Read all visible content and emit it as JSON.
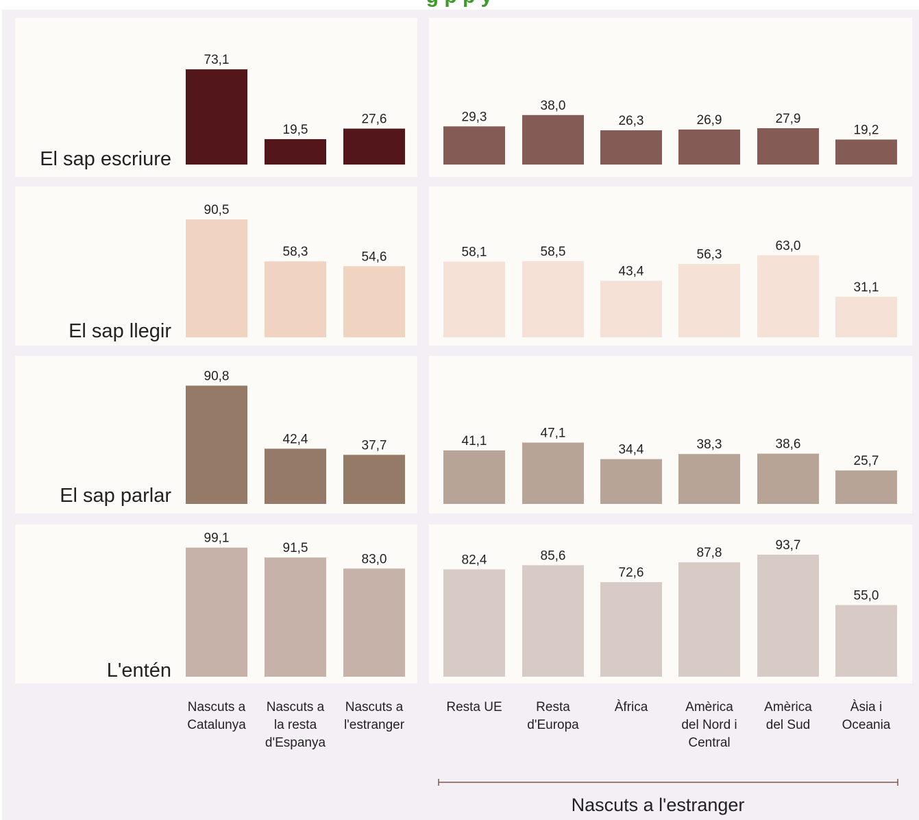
{
  "chart_data": {
    "type": "bar",
    "title": "",
    "title_fragment": "g            p         p                                               y",
    "group_label": "Nascuts a l'estranger",
    "left_categories": [
      "Nascuts a Catalunya",
      "Nascuts a la resta d'Espanya",
      "Nascuts a l'estranger"
    ],
    "left_category_lines": [
      [
        "Nascuts a",
        "Catalunya"
      ],
      [
        "Nascuts a",
        "la resta",
        "d'Espanya"
      ],
      [
        "Nascuts a",
        "l'estranger"
      ]
    ],
    "right_categories": [
      "Resta UE",
      "Resta d'Europa",
      "Àfrica",
      "Amèrica del Nord i Central",
      "Amèrica del Sud",
      "Àsia i Oceania"
    ],
    "right_category_lines": [
      [
        "Resta UE"
      ],
      [
        "Resta",
        "d'Europa"
      ],
      [
        "Àfrica"
      ],
      [
        "Amèrica",
        "del Nord i",
        "Central"
      ],
      [
        "Amèrica",
        "del Sud"
      ],
      [
        "Àsia i",
        "Oceania"
      ]
    ],
    "rows": [
      {
        "label": "El sap escriure",
        "left_values": [
          73.1,
          19.5,
          27.6
        ],
        "left_labels": [
          "73,1",
          "19,5",
          "27,6"
        ],
        "right_values": [
          29.3,
          38.0,
          26.3,
          26.9,
          27.9,
          19.2
        ],
        "right_labels": [
          "29,3",
          "38,0",
          "26,3",
          "26,9",
          "27,9",
          "19,2"
        ],
        "left_color": "#53161a",
        "right_color": "#855b56"
      },
      {
        "label": "El sap llegir",
        "left_values": [
          90.5,
          58.3,
          54.6
        ],
        "left_labels": [
          "90,5",
          "58,3",
          "54,6"
        ],
        "right_values": [
          58.1,
          58.5,
          43.4,
          56.3,
          63.0,
          31.1
        ],
        "right_labels": [
          "58,1",
          "58,5",
          "43,4",
          "56,3",
          "63,0",
          "31,1"
        ],
        "left_color": "#f0d3c1",
        "right_color": "#f5e1d5"
      },
      {
        "label": "El sap parlar",
        "left_values": [
          90.8,
          42.4,
          37.7
        ],
        "left_labels": [
          "90,8",
          "42,4",
          "37,7"
        ],
        "right_values": [
          41.1,
          47.1,
          34.4,
          38.3,
          38.6,
          25.7
        ],
        "right_labels": [
          "41,1",
          "47,1",
          "34,4",
          "38,3",
          "38,6",
          "25,7"
        ],
        "left_color": "#967a68",
        "right_color": "#b8a496"
      },
      {
        "label": "L'entén",
        "left_values": [
          99.1,
          91.5,
          83.0
        ],
        "left_labels": [
          "99,1",
          "91,5",
          "83,0"
        ],
        "right_values": [
          82.4,
          85.6,
          72.6,
          87.8,
          93.7,
          55.0
        ],
        "right_labels": [
          "82,4",
          "85,6",
          "72,6",
          "87,8",
          "93,7",
          "55,0"
        ],
        "left_color": "#c6b2a9",
        "right_color": "#d8cbc5"
      }
    ],
    "ylim": [
      0,
      100
    ],
    "grid": false,
    "legend": "none",
    "colors": {
      "page_background": "#f3eff5",
      "panel_background": "#fcfbf8",
      "text": "#222222",
      "group_bracket": "#7a5a4e"
    }
  }
}
